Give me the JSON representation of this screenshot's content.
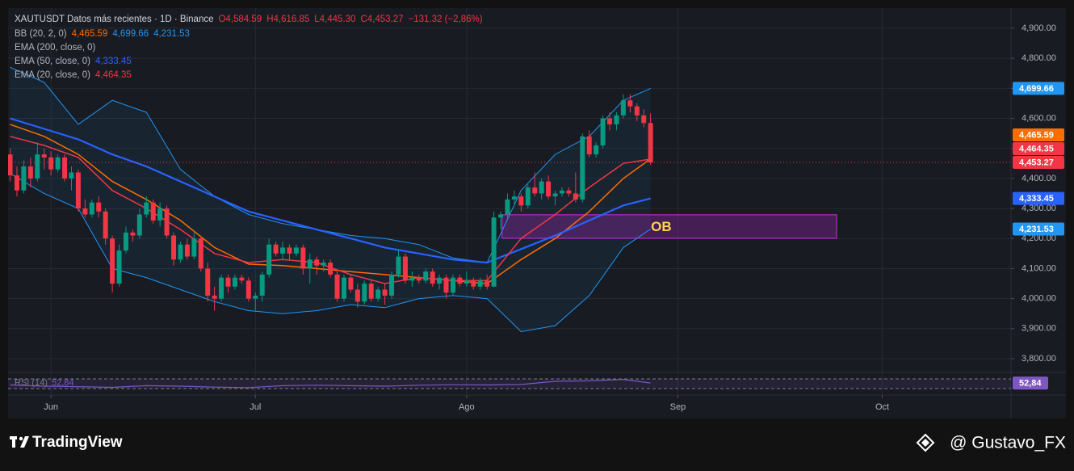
{
  "chart_data": {
    "type": "candlestick",
    "title": "XAUTUSDT Datos más recientes · 1D · Binance",
    "ohlc_legend": [
      {
        "value": 4584.59,
        "label": "O4,584.59"
      },
      {
        "value": 4616.85,
        "label": "H4,616.85"
      },
      {
        "value": 4445.3,
        "label": "L4,445.30"
      },
      {
        "value": 4453.27,
        "label": "C4,453.27"
      }
    ],
    "change": {
      "value": -131.32,
      "label": "−131.32 (−2,86%)"
    },
    "up_color": "#089981",
    "down_color": "#f23645",
    "open": [
      4480,
      4410,
      4360,
      4440,
      4400,
      4480,
      4470,
      4430,
      4470,
      4400,
      4420,
      4300,
      4280,
      4320,
      4290,
      4200,
      4050,
      4160,
      4220,
      4210,
      4280,
      4320,
      4260,
      4300,
      4210,
      4130,
      4180,
      4140,
      4200,
      4100,
      4010,
      4000,
      4070,
      4040,
      4070,
      4060,
      4000,
      4010,
      4080,
      4180,
      4150,
      4170,
      4150,
      4170,
      4100,
      4130,
      4110,
      4120,
      4080,
      4000,
      4070,
      4030,
      3990,
      4050,
      4000,
      4030,
      4010,
      4080,
      4140,
      4060,
      4070,
      4060,
      4090,
      4050,
      4070,
      4020,
      4070,
      4050,
      4060,
      4040,
      4060,
      4040,
      4270,
      4280,
      4330,
      4340,
      4310,
      4370,
      4350,
      4390,
      4340,
      4350,
      4360,
      4350,
      4330,
      4540,
      4480,
      4510,
      4600,
      4580,
      4610,
      4660,
      4640,
      4610,
      4584.59
    ],
    "high": [
      4500,
      4440,
      4460,
      4470,
      4520,
      4500,
      4490,
      4480,
      4480,
      4440,
      4430,
      4330,
      4330,
      4340,
      4300,
      4210,
      4180,
      4240,
      4230,
      4300,
      4340,
      4330,
      4320,
      4310,
      4220,
      4190,
      4200,
      4220,
      4210,
      4120,
      4040,
      4080,
      4080,
      4080,
      4080,
      4070,
      4020,
      4090,
      4200,
      4190,
      4190,
      4180,
      4180,
      4180,
      4150,
      4140,
      4130,
      4130,
      4090,
      4080,
      4080,
      4050,
      4060,
      4060,
      4040,
      4050,
      4090,
      4160,
      4150,
      4090,
      4080,
      4100,
      4100,
      4080,
      4080,
      4080,
      4080,
      4090,
      4070,
      4070,
      4080,
      4290,
      4290,
      4350,
      4360,
      4350,
      4380,
      4420,
      4400,
      4410,
      4360,
      4370,
      4370,
      4420,
      4550,
      4560,
      4520,
      4610,
      4620,
      4620,
      4680,
      4680,
      4650,
      4630,
      4616.85
    ],
    "low": [
      4390,
      4340,
      4350,
      4370,
      4390,
      4430,
      4410,
      4420,
      4390,
      4360,
      4290,
      4270,
      4270,
      4270,
      4180,
      4020,
      4040,
      4150,
      4190,
      4200,
      4270,
      4250,
      4240,
      4200,
      4110,
      4120,
      4130,
      4130,
      4090,
      3990,
      3960,
      3990,
      4020,
      4030,
      4050,
      3990,
      3960,
      3990,
      4070,
      4140,
      4130,
      4130,
      4140,
      4080,
      4050,
      4080,
      4090,
      4070,
      3990,
      3990,
      4020,
      3970,
      3980,
      3990,
      3990,
      3980,
      4000,
      4070,
      4050,
      4040,
      4050,
      4050,
      4040,
      4030,
      4000,
      4010,
      4040,
      4040,
      4030,
      4030,
      4030,
      4040,
      4230,
      4260,
      4310,
      4290,
      4300,
      4340,
      4330,
      4330,
      4310,
      4340,
      4340,
      4320,
      4320,
      4470,
      4470,
      4500,
      4560,
      4560,
      4600,
      4620,
      4590,
      4570,
      4445.3
    ],
    "close": [
      4410,
      4360,
      4440,
      4400,
      4480,
      4470,
      4430,
      4470,
      4400,
      4420,
      4300,
      4280,
      4320,
      4290,
      4200,
      4050,
      4160,
      4220,
      4210,
      4280,
      4320,
      4260,
      4300,
      4210,
      4130,
      4180,
      4140,
      4200,
      4100,
      4010,
      4000,
      4070,
      4040,
      4070,
      4060,
      4000,
      4010,
      4080,
      4180,
      4150,
      4170,
      4150,
      4170,
      4100,
      4130,
      4110,
      4120,
      4080,
      4000,
      4070,
      4030,
      3990,
      4050,
      4000,
      4030,
      4010,
      4080,
      4140,
      4060,
      4070,
      4060,
      4090,
      4050,
      4070,
      4020,
      4070,
      4050,
      4060,
      4040,
      4060,
      4040,
      4270,
      4280,
      4330,
      4340,
      4310,
      4370,
      4350,
      4390,
      4340,
      4350,
      4360,
      4350,
      4330,
      4540,
      4480,
      4510,
      4600,
      4580,
      4610,
      4660,
      4640,
      4610,
      4584.59,
      4453.27
    ],
    "last_price_label": "4,453.27",
    "xlim": [
      -0.3,
      146.9
    ],
    "xticks": [
      {
        "value": 6,
        "label": "Jun"
      },
      {
        "value": 36,
        "label": "Jul"
      },
      {
        "value": 67,
        "label": "Ago"
      },
      {
        "value": 98,
        "label": "Sep"
      },
      {
        "value": 128,
        "label": "Oct"
      }
    ],
    "ylim": [
      3757,
      4967
    ],
    "yticks": [
      {
        "value": 3800,
        "label": "3,800.00"
      },
      {
        "value": 3900,
        "label": "3,900.00"
      },
      {
        "value": 4000,
        "label": "4,000.00"
      },
      {
        "value": 4100,
        "label": "4,100.00"
      },
      {
        "value": 4200,
        "label": "4,200.00"
      },
      {
        "value": 4300,
        "label": "4,300.00"
      },
      {
        "value": 4400,
        "label": "4,400.00"
      },
      {
        "value": 4500,
        "label": "4,500.00"
      },
      {
        "value": 4600,
        "label": "4,600.00"
      },
      {
        "value": 4700,
        "label": "4,700.00"
      },
      {
        "value": 4800,
        "label": "4,800.00"
      },
      {
        "value": 4900,
        "label": "4,900.00"
      }
    ],
    "grid": true,
    "line_x": [
      0,
      5,
      10,
      15,
      20,
      25,
      30,
      35,
      40,
      45,
      50,
      55,
      60,
      65,
      70,
      75,
      80,
      85,
      90,
      94
    ],
    "indicators": [
      {
        "name": "BB (20, 2, 0)",
        "lines": [
          {
            "color": "#ff6d00",
            "label": "4,465.59",
            "values": [
              4580,
              4540,
              4480,
              4390,
              4330,
              4260,
              4170,
              4115,
              4110,
              4100,
              4090,
              4080,
              4070,
              4060,
              4050,
              4130,
              4200,
              4290,
              4400,
              4465.59
            ]
          },
          {
            "color": "#2196f3",
            "label": "4,699.66",
            "values": [
              4770,
              4720,
              4580,
              4660,
              4620,
              4430,
              4340,
              4280,
              4250,
              4230,
              4210,
              4200,
              4180,
              4135,
              4120,
              4360,
              4480,
              4540,
              4660,
              4699.66
            ]
          },
          {
            "color": "#2196f3",
            "label": "4,231.53",
            "values": [
              4416,
              4350,
              4300,
              4100,
              4070,
              4030,
              3990,
              3960,
              3950,
              3960,
              3980,
              3970,
              4000,
              4010,
              4000,
              3890,
              3910,
              4010,
              4170,
              4231.53
            ]
          }
        ]
      },
      {
        "name": "EMA (200, close, 0)",
        "lines": []
      },
      {
        "name": "EMA (50, close, 0)",
        "lines": [
          {
            "color": "#2962ff",
            "label": "4,333.45",
            "values": [
              4600,
              4565,
              4530,
              4480,
              4440,
              4390,
              4340,
              4290,
              4260,
              4230,
              4200,
              4170,
              4150,
              4130,
              4120,
              4165,
              4210,
              4260,
              4310,
              4333.45
            ]
          }
        ]
      },
      {
        "name": "EMA (20, close, 0)",
        "lines": [
          {
            "color": "#f23645",
            "label": "4,464.35",
            "values": [
              4540,
              4510,
              4470,
              4360,
              4300,
              4230,
              4150,
              4120,
              4130,
              4120,
              4080,
              4050,
              4070,
              4060,
              4060,
              4200,
              4280,
              4370,
              4450,
              4464.35
            ]
          }
        ]
      }
    ],
    "zone": {
      "label": "OB",
      "xlim": [
        72.2,
        121.3
      ],
      "ylim": [
        4201,
        4279
      ],
      "color": "#9c27b0"
    },
    "rsi": {
      "name": "RSI (14)",
      "color": "#7e57c2",
      "ylim": [
        10,
        90
      ],
      "bands": [
        70,
        30
      ],
      "value_label": "52,84",
      "values": [
        45,
        40,
        38,
        35,
        42,
        40,
        36,
        34,
        42,
        44,
        42,
        40,
        44,
        46,
        45,
        47,
        60,
        62,
        68,
        52.84
      ]
    }
  },
  "footer": {
    "brand": "TradingView",
    "author": "@ Gustavo_FX"
  }
}
